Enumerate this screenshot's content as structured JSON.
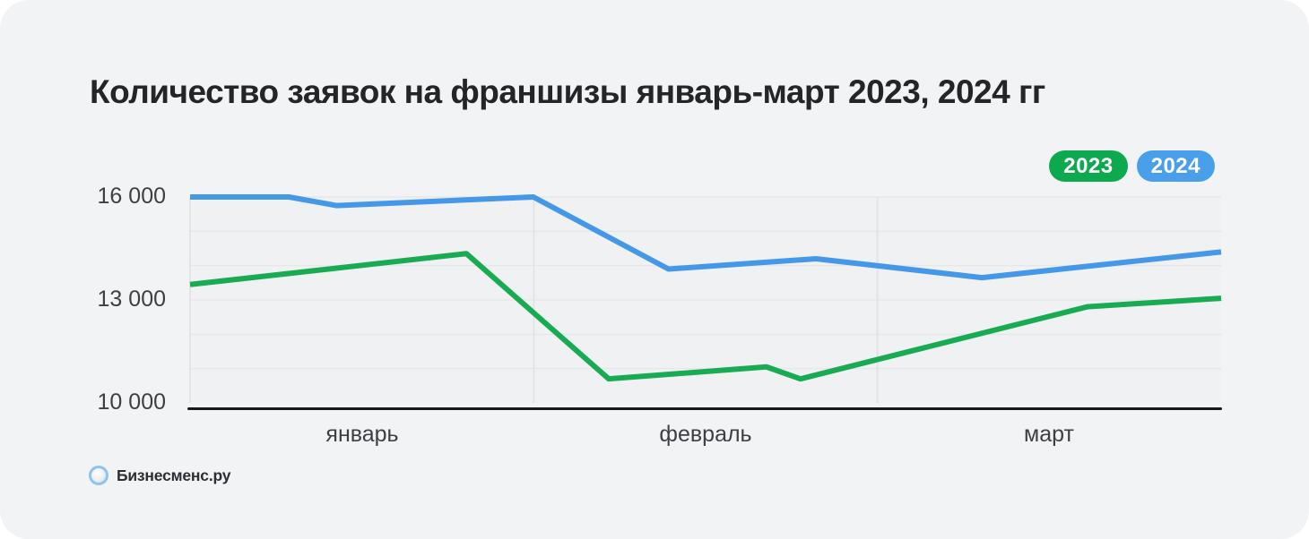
{
  "page": {
    "title": "Количество заявок на франшизы январь-март 2023, 2024 гг",
    "source_label": "Бизнесменс.ру"
  },
  "legend": [
    {
      "label": "2023",
      "color": "#0ca94f"
    },
    {
      "label": "2024",
      "color": "#499fe9"
    }
  ],
  "chart_data": {
    "type": "line",
    "title": "Количество заявок на франшизы январь-март 2023, 2024 гг",
    "x_categories": [
      "январь",
      "февраль",
      "март"
    ],
    "x_axis_note": "x given as fraction 0..1 of plot width spanning January–March",
    "ylim": [
      10000,
      16000
    ],
    "y_ticks": [
      {
        "value": 16000,
        "label": "16 000"
      },
      {
        "value": 13000,
        "label": "13 000"
      },
      {
        "value": 10000,
        "label": "10 000"
      }
    ],
    "grid": {
      "h_values": [
        16000,
        15000,
        14000,
        13000,
        12000,
        11000
      ],
      "h_color": "#e6e7ea",
      "v_fractions": [
        0,
        0.3333,
        0.6667
      ],
      "v_color": "#e3e4e7",
      "legend_position": "top-right"
    },
    "series": [
      {
        "name": "2023",
        "color": "#19ab52",
        "stroke_width": 6,
        "points": [
          {
            "x": 0.0,
            "v": 13450
          },
          {
            "x": 0.268,
            "v": 14350
          },
          {
            "x": 0.406,
            "v": 10700
          },
          {
            "x": 0.559,
            "v": 11050
          },
          {
            "x": 0.592,
            "v": 10700
          },
          {
            "x": 0.87,
            "v": 12800
          },
          {
            "x": 1.0,
            "v": 13050
          }
        ]
      },
      {
        "name": "2024",
        "color": "#4598e7",
        "stroke_width": 6,
        "points": [
          {
            "x": 0.0,
            "v": 16000
          },
          {
            "x": 0.096,
            "v": 16000
          },
          {
            "x": 0.142,
            "v": 15750
          },
          {
            "x": 0.333,
            "v": 16000
          },
          {
            "x": 0.464,
            "v": 13900
          },
          {
            "x": 0.607,
            "v": 14200
          },
          {
            "x": 0.768,
            "v": 13650
          },
          {
            "x": 1.0,
            "v": 14400
          }
        ]
      }
    ]
  }
}
